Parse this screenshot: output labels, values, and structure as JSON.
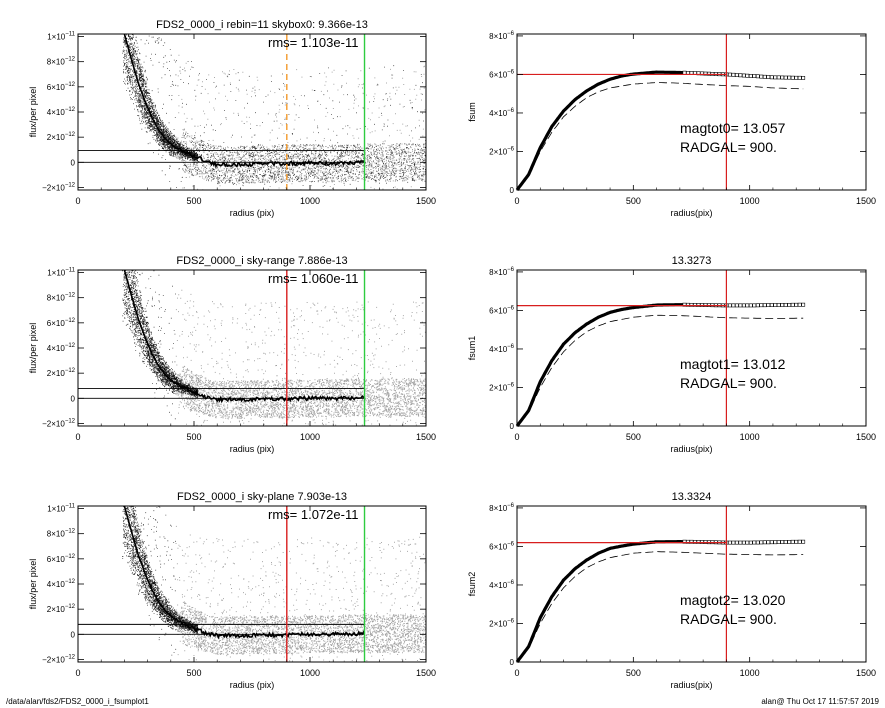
{
  "footer": {
    "left": "/data/alan/fds2/FDS2_0000_i_fsumplot1",
    "right": "alan@  Thu Oct 17 11:57:57 2019"
  },
  "colors": {
    "scatter_dark": "#111111",
    "scatter_grey": "#a0a0a0",
    "profile": "#000000",
    "red": "#d81e1e",
    "green": "#2ecc40",
    "orange": "#f39a2c"
  },
  "chart_data": [
    {
      "type": "scatter",
      "panel": "left-1",
      "title": "FDS2_0000_i rebin=11    skybox0:  9.366e-13",
      "rms_label": "rms= 1.103e-11",
      "xlabel": "radius (pix)",
      "ylabel": "flux/per pixel",
      "xlim": [
        0,
        1500
      ],
      "ylim": [
        -2.2e-12,
        1.02e-11
      ],
      "xticks": [
        {
          "v": 0,
          "label": "0"
        },
        {
          "v": 500,
          "label": "500"
        },
        {
          "v": 1000,
          "label": "1000"
        },
        {
          "v": 1500,
          "label": "1500"
        }
      ],
      "yticks": [
        {
          "v": -2e-12,
          "base": "−2×10",
          "exp": "−12"
        },
        {
          "v": 0,
          "base": "0",
          "exp": ""
        },
        {
          "v": 2e-12,
          "base": "2×10",
          "exp": "−12"
        },
        {
          "v": 4e-12,
          "base": "4×10",
          "exp": "−12"
        },
        {
          "v": 6e-12,
          "base": "6×10",
          "exp": "−12"
        },
        {
          "v": 8e-12,
          "base": "8×10",
          "exp": "−12"
        },
        {
          "v": 1e-11,
          "base": "1×10",
          "exp": "−11"
        }
      ],
      "hlines": [
        9.366e-13,
        0
      ],
      "vlines": [
        {
          "x": 900,
          "color": "orange",
          "style": "dashed"
        },
        {
          "x": 1235,
          "color": "green",
          "style": "solid"
        }
      ],
      "sky_level": 9.366e-13,
      "profile": [
        [
          200,
          1.02e-11
        ],
        [
          230,
          8.2e-12
        ],
        [
          260,
          6.3e-12
        ],
        [
          290,
          4.8e-12
        ],
        [
          320,
          3.5e-12
        ],
        [
          350,
          2.5e-12
        ],
        [
          380,
          1.8e-12
        ],
        [
          410,
          1.3e-12
        ],
        [
          450,
          9e-13
        ],
        [
          500,
          5e-13
        ],
        [
          550,
          1e-13
        ],
        [
          600,
          -2e-13
        ],
        [
          700,
          -2e-13
        ],
        [
          800,
          -1e-13
        ],
        [
          900,
          -1e-13
        ],
        [
          1000,
          -5e-14
        ],
        [
          1100,
          -1e-13
        ],
        [
          1235,
          0
        ]
      ],
      "scatter_seed": 7
    },
    {
      "type": "line",
      "panel": "right-1",
      "title": "",
      "xlabel": "radius(pix)",
      "ylabel": "fsum",
      "xlim": [
        0,
        1500
      ],
      "ylim": [
        0,
        8.1e-06
      ],
      "xticks": [
        {
          "v": 0,
          "label": "0"
        },
        {
          "v": 500,
          "label": "500"
        },
        {
          "v": 1000,
          "label": "1000"
        },
        {
          "v": 1500,
          "label": "1500"
        }
      ],
      "yticks": [
        {
          "v": 0,
          "base": "0",
          "exp": ""
        },
        {
          "v": 2e-06,
          "base": "2×10",
          "exp": "−6"
        },
        {
          "v": 4e-06,
          "base": "4×10",
          "exp": "−6"
        },
        {
          "v": 6e-06,
          "base": "6×10",
          "exp": "−6"
        },
        {
          "v": 8e-06,
          "base": "8×10",
          "exp": "−6"
        }
      ],
      "curve": [
        [
          0,
          0
        ],
        [
          50,
          8e-07
        ],
        [
          100,
          2.2e-06
        ],
        [
          150,
          3.3e-06
        ],
        [
          200,
          4.1e-06
        ],
        [
          250,
          4.7e-06
        ],
        [
          300,
          5.15e-06
        ],
        [
          350,
          5.5e-06
        ],
        [
          400,
          5.75e-06
        ],
        [
          450,
          5.92e-06
        ],
        [
          500,
          6.02e-06
        ],
        [
          600,
          6.12e-06
        ],
        [
          700,
          6.1e-06
        ],
        [
          800,
          6.05e-06
        ],
        [
          900,
          6e-06
        ],
        [
          1000,
          5.93e-06
        ],
        [
          1100,
          5.85e-06
        ],
        [
          1235,
          5.82e-06
        ]
      ],
      "dashed": [
        [
          0,
          0
        ],
        [
          50,
          7e-07
        ],
        [
          100,
          2e-06
        ],
        [
          150,
          3e-06
        ],
        [
          200,
          3.8e-06
        ],
        [
          250,
          4.35e-06
        ],
        [
          300,
          4.8e-06
        ],
        [
          350,
          5.1e-06
        ],
        [
          400,
          5.3e-06
        ],
        [
          500,
          5.5e-06
        ],
        [
          600,
          5.58e-06
        ],
        [
          700,
          5.55e-06
        ],
        [
          800,
          5.48e-06
        ],
        [
          900,
          5.42e-06
        ],
        [
          1000,
          5.38e-06
        ],
        [
          1100,
          5.3e-06
        ],
        [
          1235,
          5.25e-06
        ]
      ],
      "hline": 6e-06,
      "vline": 900,
      "annot1": "magtot0=  13.057",
      "annot2": "RADGAL=    900."
    },
    {
      "type": "scatter",
      "panel": "left-2",
      "title": "FDS2_0000_i sky-range  7.886e-13",
      "rms_label": "rms= 1.060e-11",
      "xlabel": "radius (pix)",
      "ylabel": "flux/per pixel",
      "xlim": [
        0,
        1500
      ],
      "ylim": [
        -2.2e-12,
        1.02e-11
      ],
      "xticks": [
        {
          "v": 0,
          "label": "0"
        },
        {
          "v": 500,
          "label": "500"
        },
        {
          "v": 1000,
          "label": "1000"
        },
        {
          "v": 1500,
          "label": "1500"
        }
      ],
      "yticks": [
        {
          "v": -2e-12,
          "base": "−2×10",
          "exp": "−12"
        },
        {
          "v": 0,
          "base": "0",
          "exp": ""
        },
        {
          "v": 2e-12,
          "base": "2×10",
          "exp": "−12"
        },
        {
          "v": 4e-12,
          "base": "4×10",
          "exp": "−12"
        },
        {
          "v": 6e-12,
          "base": "6×10",
          "exp": "−12"
        },
        {
          "v": 8e-12,
          "base": "8×10",
          "exp": "−12"
        },
        {
          "v": 1e-11,
          "base": "1×10",
          "exp": "−11"
        }
      ],
      "hlines": [
        7.886e-13,
        0
      ],
      "vlines": [
        {
          "x": 900,
          "color": "red",
          "style": "solid"
        },
        {
          "x": 1235,
          "color": "green",
          "style": "solid"
        }
      ],
      "sky_level": 7.886e-13,
      "profile": [
        [
          200,
          1.02e-11
        ],
        [
          230,
          8.2e-12
        ],
        [
          260,
          6.3e-12
        ],
        [
          290,
          4.8e-12
        ],
        [
          320,
          3.5e-12
        ],
        [
          350,
          2.5e-12
        ],
        [
          380,
          1.8e-12
        ],
        [
          410,
          1.3e-12
        ],
        [
          450,
          9e-13
        ],
        [
          500,
          5e-13
        ],
        [
          550,
          1e-13
        ],
        [
          600,
          -1e-13
        ],
        [
          700,
          -1e-13
        ],
        [
          800,
          -5e-14
        ],
        [
          900,
          -5e-14
        ],
        [
          1000,
          0
        ],
        [
          1100,
          0
        ],
        [
          1235,
          5e-14
        ]
      ],
      "scatter_seed": 11
    },
    {
      "type": "line",
      "panel": "right-2",
      "title": "13.3273",
      "xlabel": "radius(pix)",
      "ylabel": "fsum1",
      "xlim": [
        0,
        1500
      ],
      "ylim": [
        0,
        8.1e-06
      ],
      "xticks": [
        {
          "v": 0,
          "label": "0"
        },
        {
          "v": 500,
          "label": "500"
        },
        {
          "v": 1000,
          "label": "1000"
        },
        {
          "v": 1500,
          "label": "1500"
        }
      ],
      "yticks": [
        {
          "v": 0,
          "base": "0",
          "exp": ""
        },
        {
          "v": 2e-06,
          "base": "2×10",
          "exp": "−6"
        },
        {
          "v": 4e-06,
          "base": "4×10",
          "exp": "−6"
        },
        {
          "v": 6e-06,
          "base": "6×10",
          "exp": "−6"
        },
        {
          "v": 8e-06,
          "base": "8×10",
          "exp": "−6"
        }
      ],
      "curve": [
        [
          0,
          0
        ],
        [
          50,
          8e-07
        ],
        [
          100,
          2.3e-06
        ],
        [
          150,
          3.4e-06
        ],
        [
          200,
          4.25e-06
        ],
        [
          250,
          4.85e-06
        ],
        [
          300,
          5.3e-06
        ],
        [
          350,
          5.65e-06
        ],
        [
          400,
          5.9e-06
        ],
        [
          450,
          6.05e-06
        ],
        [
          500,
          6.15e-06
        ],
        [
          600,
          6.28e-06
        ],
        [
          700,
          6.3e-06
        ],
        [
          800,
          6.28e-06
        ],
        [
          900,
          6.26e-06
        ],
        [
          1000,
          6.26e-06
        ],
        [
          1100,
          6.28e-06
        ],
        [
          1235,
          6.3e-06
        ]
      ],
      "dashed": [
        [
          0,
          0
        ],
        [
          50,
          7e-07
        ],
        [
          100,
          2e-06
        ],
        [
          150,
          3.05e-06
        ],
        [
          200,
          3.85e-06
        ],
        [
          250,
          4.45e-06
        ],
        [
          300,
          4.9e-06
        ],
        [
          350,
          5.2e-06
        ],
        [
          400,
          5.42e-06
        ],
        [
          500,
          5.65e-06
        ],
        [
          600,
          5.75e-06
        ],
        [
          700,
          5.73e-06
        ],
        [
          800,
          5.68e-06
        ],
        [
          900,
          5.62e-06
        ],
        [
          1000,
          5.6e-06
        ],
        [
          1100,
          5.58e-06
        ],
        [
          1235,
          5.6e-06
        ]
      ],
      "hline": 6.25e-06,
      "vline": 900,
      "annot1": "magtot1=  13.012",
      "annot2": "RADGAL=    900."
    },
    {
      "type": "scatter",
      "panel": "left-3",
      "title": "FDS2_0000_i sky-plane  7.903e-13",
      "rms_label": "rms= 1.072e-11",
      "xlabel": "radius (pix)",
      "ylabel": "flux/per pixel",
      "xlim": [
        0,
        1500
      ],
      "ylim": [
        -2.2e-12,
        1.02e-11
      ],
      "xticks": [
        {
          "v": 0,
          "label": "0"
        },
        {
          "v": 500,
          "label": "500"
        },
        {
          "v": 1000,
          "label": "1000"
        },
        {
          "v": 1500,
          "label": "1500"
        }
      ],
      "yticks": [
        {
          "v": -2e-12,
          "base": "−2×10",
          "exp": "−12"
        },
        {
          "v": 0,
          "base": "0",
          "exp": ""
        },
        {
          "v": 2e-12,
          "base": "2×10",
          "exp": "−12"
        },
        {
          "v": 4e-12,
          "base": "4×10",
          "exp": "−12"
        },
        {
          "v": 6e-12,
          "base": "6×10",
          "exp": "−12"
        },
        {
          "v": 8e-12,
          "base": "8×10",
          "exp": "−12"
        },
        {
          "v": 1e-11,
          "base": "1×10",
          "exp": "−11"
        }
      ],
      "hlines": [
        7.903e-13,
        0
      ],
      "vlines": [
        {
          "x": 900,
          "color": "red",
          "style": "solid"
        },
        {
          "x": 1235,
          "color": "green",
          "style": "solid"
        }
      ],
      "sky_level": 7.903e-13,
      "profile": [
        [
          200,
          1.02e-11
        ],
        [
          230,
          8.2e-12
        ],
        [
          260,
          6.3e-12
        ],
        [
          290,
          4.8e-12
        ],
        [
          320,
          3.5e-12
        ],
        [
          350,
          2.5e-12
        ],
        [
          380,
          1.8e-12
        ],
        [
          410,
          1.3e-12
        ],
        [
          450,
          9e-13
        ],
        [
          500,
          5e-13
        ],
        [
          550,
          1e-13
        ],
        [
          600,
          -1e-13
        ],
        [
          700,
          -1e-13
        ],
        [
          800,
          -5e-14
        ],
        [
          900,
          -5e-14
        ],
        [
          1000,
          0
        ],
        [
          1100,
          0
        ],
        [
          1235,
          5e-14
        ]
      ],
      "scatter_seed": 23
    },
    {
      "type": "line",
      "panel": "right-3",
      "title": "13.3324",
      "xlabel": "radius(pix)",
      "ylabel": "fsum2",
      "xlim": [
        0,
        1500
      ],
      "ylim": [
        0,
        8.1e-06
      ],
      "xticks": [
        {
          "v": 0,
          "label": "0"
        },
        {
          "v": 500,
          "label": "500"
        },
        {
          "v": 1000,
          "label": "1000"
        },
        {
          "v": 1500,
          "label": "1500"
        }
      ],
      "yticks": [
        {
          "v": 0,
          "base": "0",
          "exp": ""
        },
        {
          "v": 2e-06,
          "base": "2×10",
          "exp": "−6"
        },
        {
          "v": 4e-06,
          "base": "4×10",
          "exp": "−6"
        },
        {
          "v": 6e-06,
          "base": "6×10",
          "exp": "−6"
        },
        {
          "v": 8e-06,
          "base": "8×10",
          "exp": "−6"
        }
      ],
      "curve": [
        [
          0,
          0
        ],
        [
          50,
          8e-07
        ],
        [
          100,
          2.3e-06
        ],
        [
          150,
          3.4e-06
        ],
        [
          200,
          4.25e-06
        ],
        [
          250,
          4.85e-06
        ],
        [
          300,
          5.3e-06
        ],
        [
          350,
          5.65e-06
        ],
        [
          400,
          5.9e-06
        ],
        [
          450,
          6.02e-06
        ],
        [
          500,
          6.12e-06
        ],
        [
          600,
          6.24e-06
        ],
        [
          700,
          6.25e-06
        ],
        [
          800,
          6.23e-06
        ],
        [
          900,
          6.2e-06
        ],
        [
          1000,
          6.2e-06
        ],
        [
          1100,
          6.22e-06
        ],
        [
          1235,
          6.25e-06
        ]
      ],
      "dashed": [
        [
          0,
          0
        ],
        [
          50,
          7e-07
        ],
        [
          100,
          2e-06
        ],
        [
          150,
          3.05e-06
        ],
        [
          200,
          3.85e-06
        ],
        [
          250,
          4.45e-06
        ],
        [
          300,
          4.9e-06
        ],
        [
          350,
          5.2e-06
        ],
        [
          400,
          5.42e-06
        ],
        [
          500,
          5.65e-06
        ],
        [
          600,
          5.73e-06
        ],
        [
          700,
          5.7e-06
        ],
        [
          800,
          5.65e-06
        ],
        [
          900,
          5.6e-06
        ],
        [
          1000,
          5.58e-06
        ],
        [
          1100,
          5.56e-06
        ],
        [
          1235,
          5.58e-06
        ]
      ],
      "hline": 6.2e-06,
      "vline": 900,
      "annot1": "magtot2=  13.020",
      "annot2": "RADGAL=    900."
    }
  ]
}
